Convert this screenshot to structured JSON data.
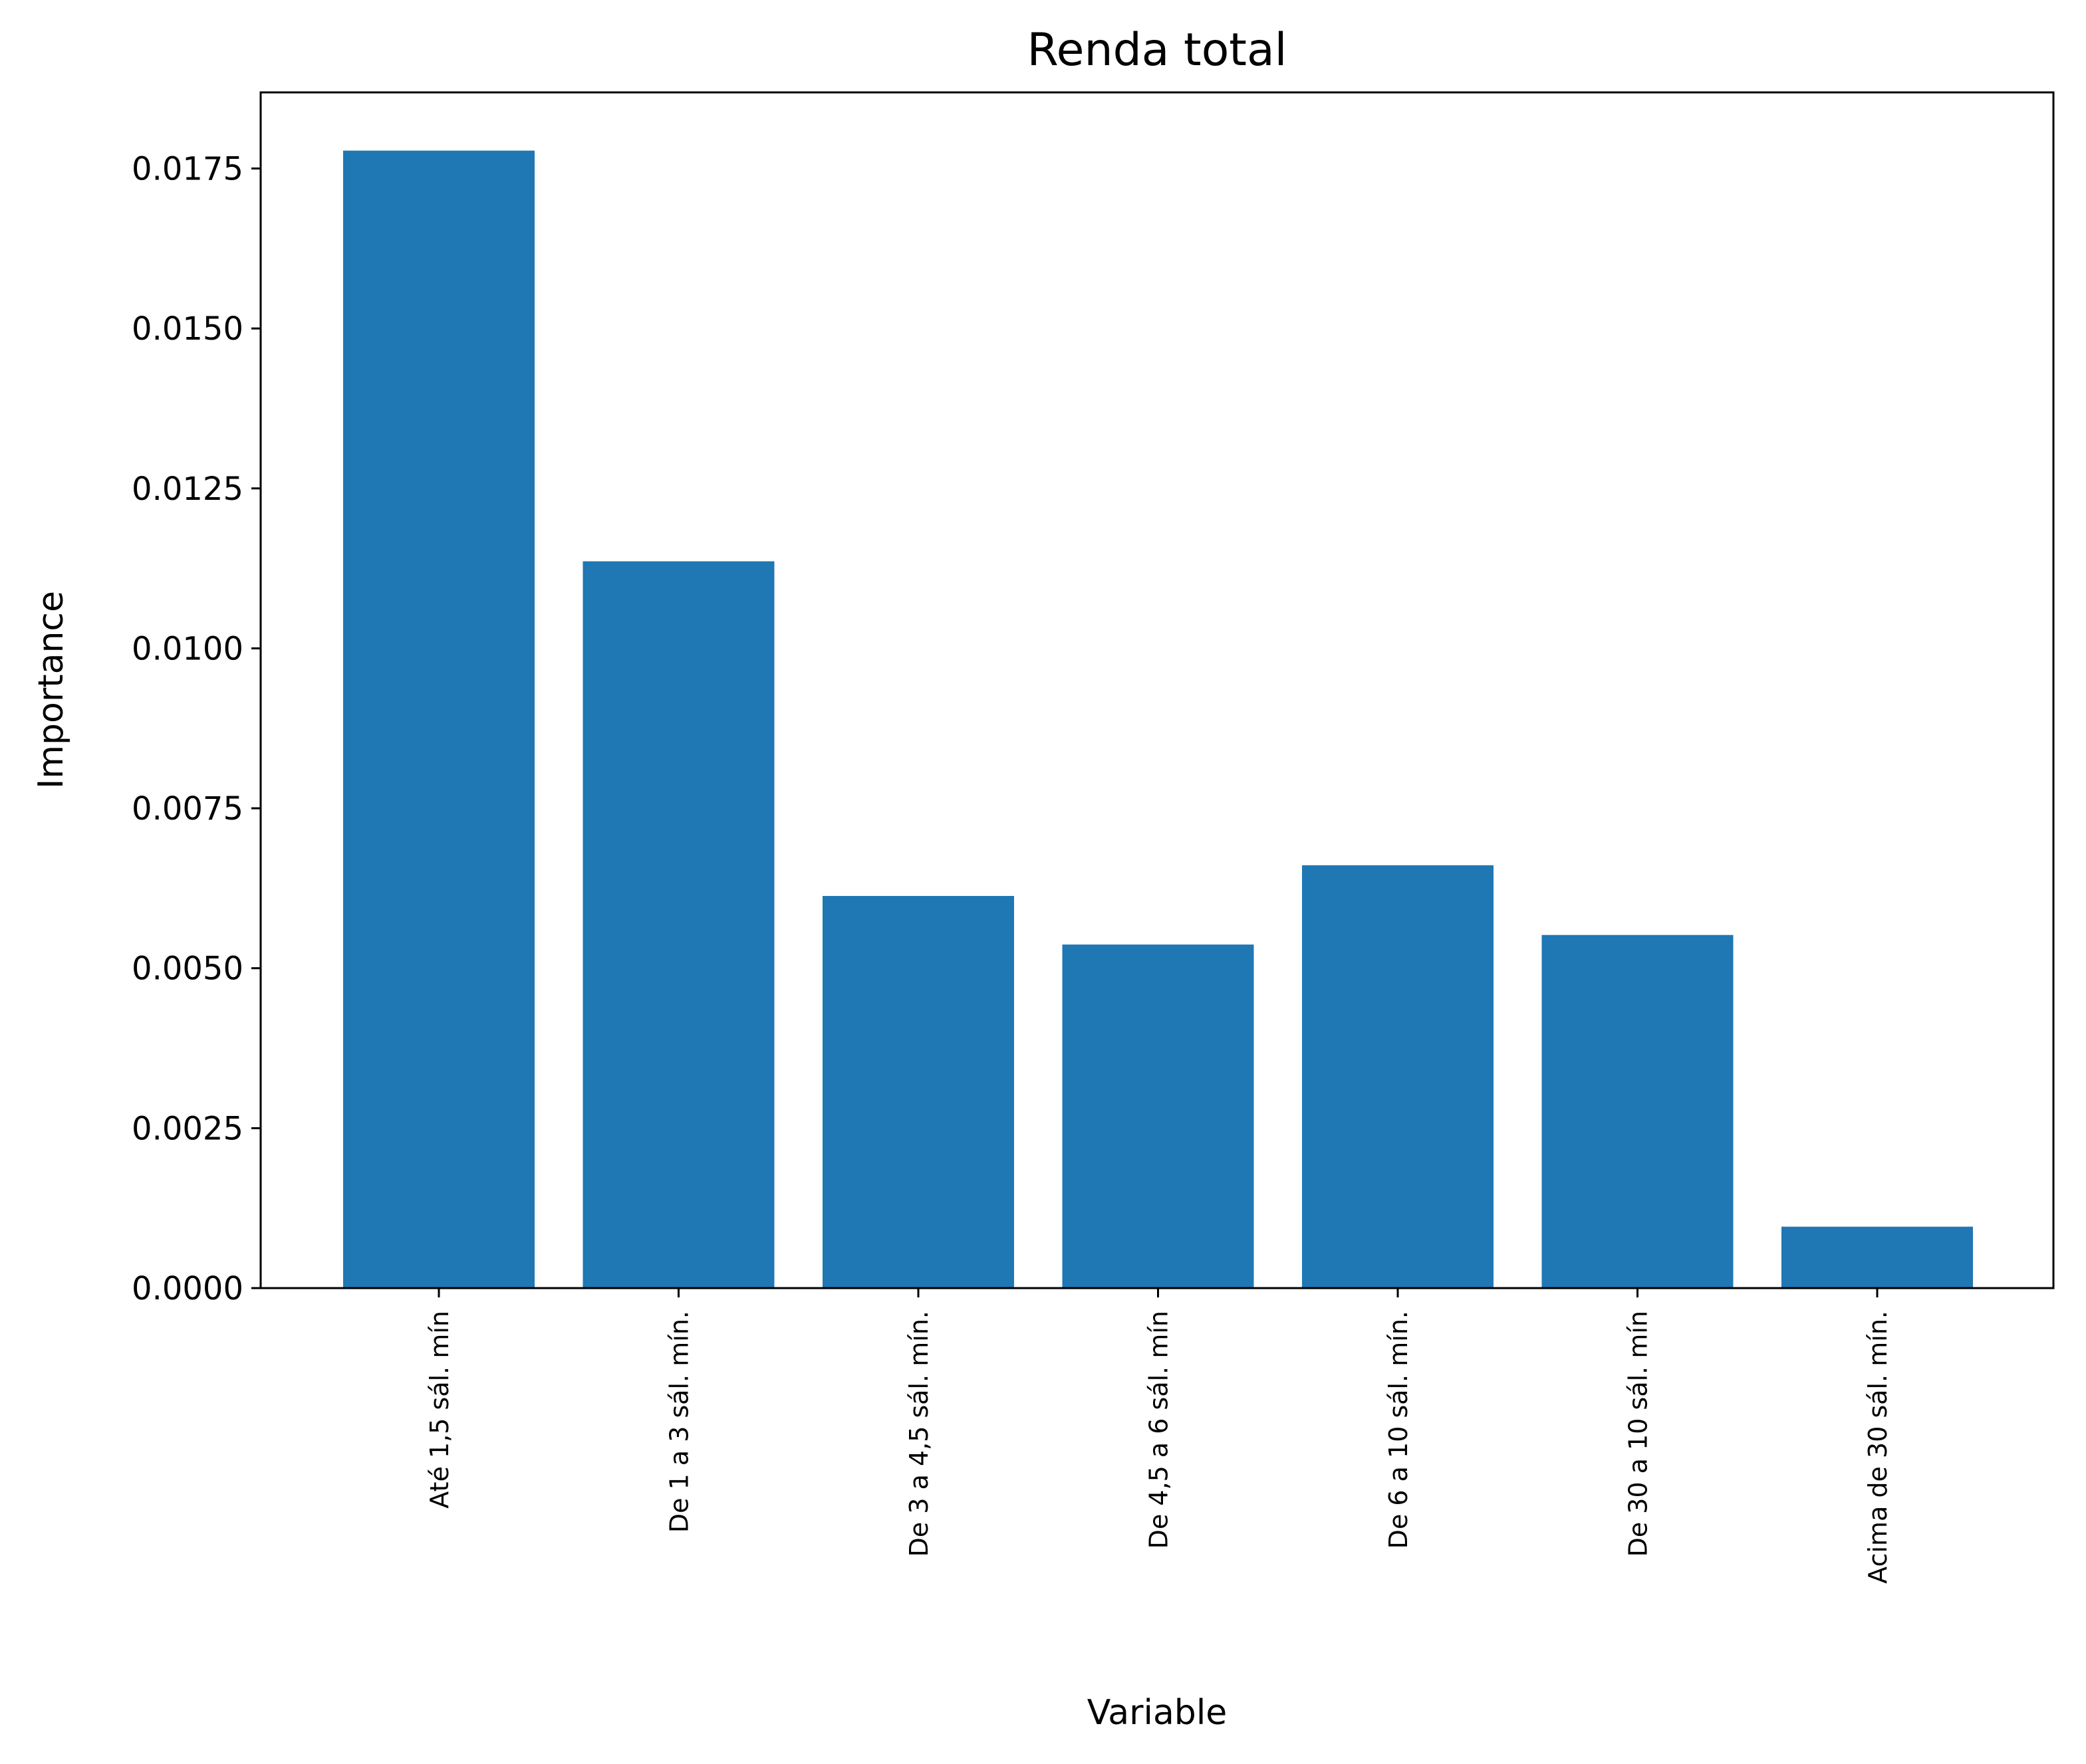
{
  "chart_data": {
    "type": "bar",
    "title": "Renda total",
    "xlabel": "Variable",
    "ylabel": "Importance",
    "categories": [
      "Até 1,5 sál. mín",
      "De 1 a 3 sál. mín.",
      "De 3 a 4,5 sál. mín.",
      "De 4,5 a 6 sál. mín",
      "De 6 a 10 sál. mín.",
      "De 30 a 10 sál. mín",
      "Acima de 30 sál. mín."
    ],
    "values": [
      0.01778,
      0.01136,
      0.00613,
      0.00537,
      0.00661,
      0.00552,
      0.00096
    ],
    "ylim": [
      0,
      0.01869
    ],
    "yticks": [
      0.0,
      0.0025,
      0.005,
      0.0075,
      0.01,
      0.0125,
      0.015,
      0.0175
    ],
    "ytick_labels": [
      "0.0000",
      "0.0025",
      "0.0050",
      "0.0075",
      "0.0100",
      "0.0125",
      "0.0150",
      "0.0175"
    ],
    "bar_color": "#1f77b4",
    "grid": false,
    "legend": "none",
    "xtick_rotation": 90
  }
}
